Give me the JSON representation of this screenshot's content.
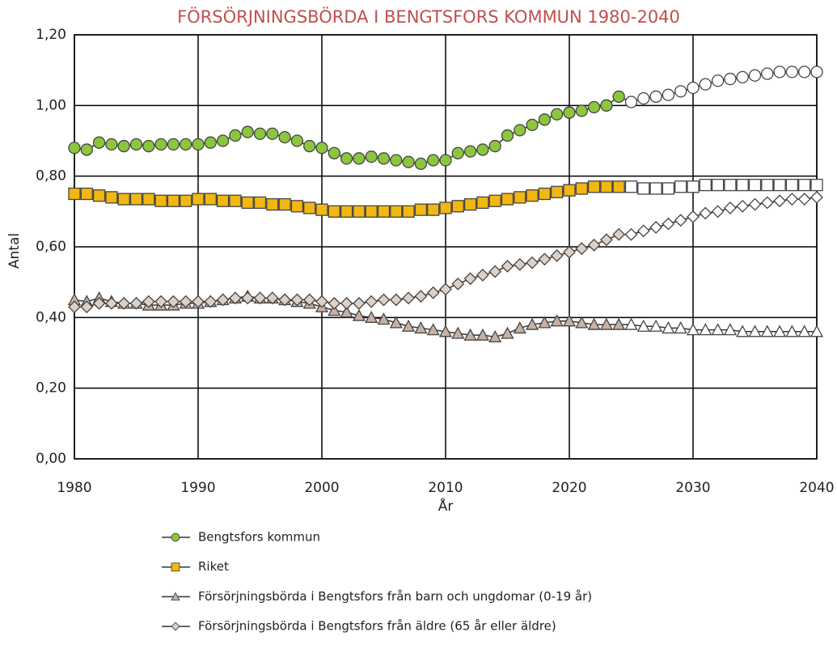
{
  "chart_data": {
    "type": "line",
    "title": "FÖRSÖRJNINGSBÖRDA I BENGTSFORS KOMMUN 1980-2040",
    "x_label": "År",
    "y_label": "Antal",
    "x": [
      1980,
      1981,
      1982,
      1983,
      1984,
      1985,
      1986,
      1987,
      1988,
      1989,
      1990,
      1991,
      1992,
      1993,
      1994,
      1995,
      1996,
      1997,
      1998,
      1999,
      2000,
      2001,
      2002,
      2003,
      2004,
      2005,
      2006,
      2007,
      2008,
      2009,
      2010,
      2011,
      2012,
      2013,
      2014,
      2015,
      2016,
      2017,
      2018,
      2019,
      2020,
      2021,
      2022,
      2023,
      2024,
      2025,
      2026,
      2027,
      2028,
      2029,
      2030,
      2031,
      2032,
      2033,
      2034,
      2035,
      2036,
      2037,
      2038,
      2039,
      2040
    ],
    "forecast_start": 2025,
    "series": [
      {
        "name": "Bengtsfors kommun",
        "color": "#8cc63e",
        "marker": "circle",
        "values": [
          0.88,
          0.875,
          0.895,
          0.89,
          0.885,
          0.89,
          0.885,
          0.89,
          0.89,
          0.89,
          0.89,
          0.895,
          0.9,
          0.915,
          0.925,
          0.92,
          0.92,
          0.91,
          0.9,
          0.885,
          0.88,
          0.865,
          0.85,
          0.85,
          0.855,
          0.85,
          0.845,
          0.84,
          0.835,
          0.845,
          0.845,
          0.865,
          0.87,
          0.875,
          0.885,
          0.915,
          0.93,
          0.945,
          0.96,
          0.975,
          0.98,
          0.985,
          0.995,
          1.0,
          1.025,
          1.01,
          1.02,
          1.025,
          1.03,
          1.04,
          1.05,
          1.06,
          1.07,
          1.075,
          1.08,
          1.085,
          1.09,
          1.095,
          1.095,
          1.095,
          1.095
        ]
      },
      {
        "name": "Riket",
        "color": "#f2b711",
        "marker": "square",
        "values": [
          0.75,
          0.75,
          0.745,
          0.74,
          0.735,
          0.735,
          0.735,
          0.73,
          0.73,
          0.73,
          0.735,
          0.735,
          0.73,
          0.73,
          0.725,
          0.725,
          0.72,
          0.72,
          0.715,
          0.71,
          0.705,
          0.7,
          0.7,
          0.7,
          0.7,
          0.7,
          0.7,
          0.7,
          0.705,
          0.705,
          0.71,
          0.715,
          0.72,
          0.725,
          0.73,
          0.735,
          0.74,
          0.745,
          0.75,
          0.755,
          0.76,
          0.765,
          0.77,
          0.77,
          0.77,
          0.77,
          0.765,
          0.765,
          0.765,
          0.77,
          0.77,
          0.775,
          0.775,
          0.775,
          0.775,
          0.775,
          0.775,
          0.775,
          0.775,
          0.775,
          0.775
        ]
      },
      {
        "name": "Försörjningsbörda i Bengtsfors från barn och ungdomar (0-19 år)",
        "color": "#c8b1a4",
        "marker": "triangle",
        "values": [
          0.45,
          0.445,
          0.455,
          0.445,
          0.44,
          0.44,
          0.435,
          0.435,
          0.435,
          0.44,
          0.44,
          0.445,
          0.45,
          0.455,
          0.46,
          0.455,
          0.455,
          0.45,
          0.445,
          0.44,
          0.43,
          0.42,
          0.415,
          0.405,
          0.4,
          0.395,
          0.385,
          0.375,
          0.37,
          0.365,
          0.36,
          0.355,
          0.35,
          0.35,
          0.345,
          0.355,
          0.37,
          0.38,
          0.385,
          0.39,
          0.39,
          0.385,
          0.38,
          0.38,
          0.38,
          0.38,
          0.375,
          0.375,
          0.37,
          0.37,
          0.365,
          0.365,
          0.365,
          0.365,
          0.36,
          0.36,
          0.36,
          0.36,
          0.36,
          0.36,
          0.36
        ]
      },
      {
        "name": "Försörjningsbörda i Bengtsfors från äldre (65 år eller äldre)",
        "color": "#ddd0c6",
        "marker": "diamond",
        "values": [
          0.43,
          0.43,
          0.44,
          0.44,
          0.44,
          0.44,
          0.445,
          0.445,
          0.445,
          0.445,
          0.445,
          0.445,
          0.45,
          0.455,
          0.455,
          0.455,
          0.455,
          0.45,
          0.45,
          0.45,
          0.445,
          0.44,
          0.44,
          0.44,
          0.445,
          0.45,
          0.45,
          0.455,
          0.46,
          0.47,
          0.48,
          0.495,
          0.51,
          0.52,
          0.53,
          0.545,
          0.55,
          0.555,
          0.565,
          0.575,
          0.585,
          0.595,
          0.605,
          0.62,
          0.635,
          0.635,
          0.645,
          0.655,
          0.665,
          0.675,
          0.685,
          0.695,
          0.7,
          0.71,
          0.715,
          0.72,
          0.725,
          0.73,
          0.735,
          0.735,
          0.74
        ]
      }
    ],
    "xlim": [
      1980,
      2040
    ],
    "xticks": [
      1980,
      1990,
      2000,
      2010,
      2020,
      2030,
      2040
    ],
    "ylim": [
      0,
      1.2
    ],
    "yticks": [
      {
        "value": 0,
        "label": "0,00"
      },
      {
        "value": 0.2,
        "label": "0,20"
      },
      {
        "value": 0.4,
        "label": "0,40"
      },
      {
        "value": 0.6,
        "label": "0,60"
      },
      {
        "value": 0.8,
        "label": "0,80"
      },
      {
        "value": 1.0,
        "label": "1,00"
      },
      {
        "value": 1.2,
        "label": "1,20"
      }
    ],
    "grid": true,
    "legend": "bottom",
    "title_color": "#c0504d"
  }
}
